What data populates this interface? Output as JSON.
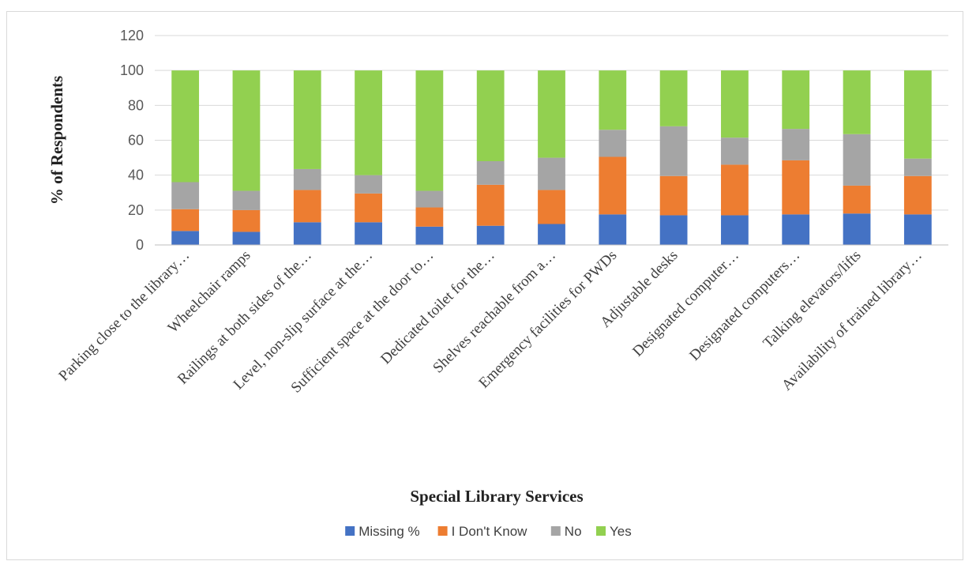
{
  "chart_data": {
    "type": "bar",
    "stacked": true,
    "title": "",
    "xlabel": "Special Library Services",
    "ylabel": "% of Respondents",
    "ylim": [
      0,
      120
    ],
    "yticks": [
      0,
      20,
      40,
      60,
      80,
      100,
      120
    ],
    "grid": true,
    "legend_position": "bottom",
    "categories": [
      "Parking close to the library…",
      "Wheelchair ramps",
      "Railings at both sides of the…",
      "Level, non-slip surface at the…",
      "Sufficient space at the door to…",
      "Dedicated toilet for the…",
      "Shelves reachable from a…",
      "Emergency facilities for PWDs",
      "Adjustable desks",
      "Designated computer…",
      "Designated computers…",
      "Talking elevators/lifts",
      "Availability of trained library…"
    ],
    "series": [
      {
        "name": "Missing %",
        "color": "#4472c4",
        "values": [
          8,
          7.5,
          13,
          13,
          10.5,
          11,
          12,
          17.5,
          17,
          17,
          17.5,
          18,
          17.5
        ]
      },
      {
        "name": "I Don't Know",
        "color": "#ed7d31",
        "values": [
          12.5,
          12.5,
          18.5,
          16.5,
          11,
          23.5,
          19.5,
          33,
          22.5,
          29,
          31,
          16,
          22
        ]
      },
      {
        "name": "No",
        "color": "#a5a5a5",
        "values": [
          15.5,
          11,
          12,
          10.5,
          9.5,
          13.5,
          18.5,
          15.5,
          28.5,
          15.5,
          18,
          29.5,
          10
        ]
      },
      {
        "name": "Yes",
        "color": "#92d050",
        "values": [
          64,
          69,
          56.5,
          60,
          69,
          52,
          50,
          34,
          32,
          38.5,
          33.5,
          36.5,
          50.5
        ]
      }
    ]
  }
}
